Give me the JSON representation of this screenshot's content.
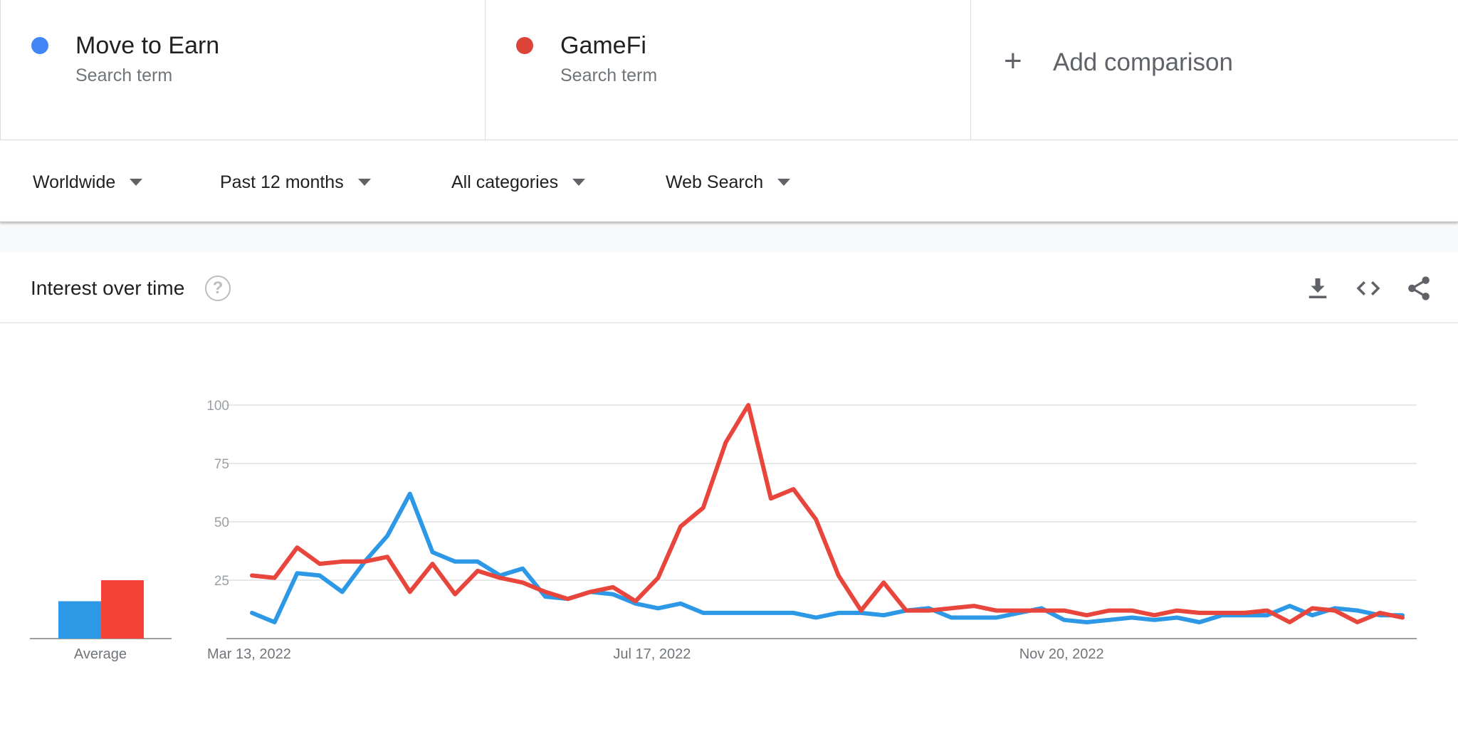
{
  "terms": [
    {
      "name": "Move to Earn",
      "type": "Search term",
      "color": "#4285f4"
    },
    {
      "name": "GameFi",
      "type": "Search term",
      "color": "#db4437"
    }
  ],
  "add_comparison": {
    "label": "Add comparison",
    "icon": "plus-icon"
  },
  "filters": {
    "region": "Worldwide",
    "time_range": "Past 12 months",
    "category": "All categories",
    "search_type": "Web Search"
  },
  "card": {
    "title": "Interest over time",
    "icons": [
      "help-icon",
      "download-icon",
      "embed-icon",
      "share-icon"
    ]
  },
  "chart_data": {
    "type": "line",
    "title": "Interest over time",
    "x_tick_labels": [
      "Mar 13, 2022",
      "Jul 17, 2022",
      "Nov 20, 2022"
    ],
    "y_tick_labels": [
      "25",
      "50",
      "75",
      "100"
    ],
    "ylim": [
      0,
      100
    ],
    "grid": true,
    "series": [
      {
        "name": "Move to Earn",
        "color": "#2d98e6",
        "values": [
          11,
          7,
          28,
          27,
          20,
          33,
          44,
          62,
          37,
          33,
          33,
          27,
          30,
          18,
          17,
          20,
          19,
          15,
          13,
          15,
          11,
          11,
          11,
          11,
          11,
          9,
          11,
          11,
          10,
          12,
          13,
          9,
          9,
          9,
          11,
          13,
          8,
          7,
          8,
          9,
          8,
          9,
          7,
          10,
          10,
          10,
          14,
          10,
          13,
          12,
          10,
          10
        ]
      },
      {
        "name": "GameFi",
        "color": "#e8453c",
        "values": [
          27,
          26,
          39,
          32,
          33,
          33,
          35,
          20,
          32,
          19,
          29,
          26,
          24,
          20,
          17,
          20,
          22,
          16,
          26,
          48,
          56,
          84,
          100,
          60,
          64,
          51,
          27,
          12,
          24,
          12,
          12,
          13,
          14,
          12,
          12,
          12,
          12,
          10,
          12,
          12,
          10,
          12,
          11,
          11,
          11,
          12,
          7,
          13,
          12,
          7,
          11,
          9
        ]
      }
    ],
    "average": {
      "label": "Average",
      "values": [
        {
          "name": "Move to Earn",
          "value": 16,
          "color": "#2d98e6"
        },
        {
          "name": "GameFi",
          "value": 25,
          "color": "#f44336"
        }
      ]
    }
  }
}
